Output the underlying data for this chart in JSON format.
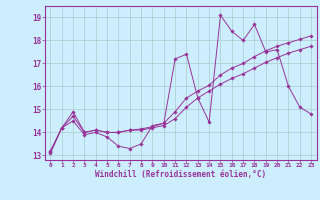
{
  "xlabel": "Windchill (Refroidissement éolien,°C)",
  "bg_color": "#cceeff",
  "line_color": "#993399",
  "grid_color": "#aacccc",
  "xlim": [
    -0.5,
    23.5
  ],
  "ylim": [
    12.8,
    19.5
  ],
  "yticks": [
    13,
    14,
    15,
    16,
    17,
    18,
    19
  ],
  "xticks": [
    0,
    1,
    2,
    3,
    4,
    5,
    6,
    7,
    8,
    9,
    10,
    11,
    12,
    13,
    14,
    15,
    16,
    17,
    18,
    19,
    20,
    21,
    22,
    23
  ],
  "line1_x": [
    0,
    1,
    2,
    3,
    4,
    5,
    6,
    7,
    8,
    9,
    10,
    11,
    12,
    13,
    14,
    15,
    16,
    17,
    18,
    19,
    20,
    21,
    22,
    23
  ],
  "line1_y": [
    13.1,
    14.2,
    14.5,
    13.9,
    14.0,
    13.8,
    13.4,
    13.3,
    13.5,
    14.3,
    14.4,
    17.2,
    17.4,
    15.5,
    14.45,
    19.1,
    18.4,
    18.0,
    18.7,
    17.5,
    17.6,
    16.0,
    15.1,
    14.8
  ],
  "line2_x": [
    0,
    1,
    2,
    3,
    4,
    5,
    6,
    7,
    8,
    9,
    10,
    11,
    12,
    13,
    14,
    15,
    16,
    17,
    18,
    19,
    20,
    21,
    22,
    23
  ],
  "line2_y": [
    13.2,
    14.2,
    14.9,
    14.0,
    14.1,
    14.0,
    14.0,
    14.1,
    14.15,
    14.25,
    14.4,
    14.9,
    15.5,
    15.8,
    16.05,
    16.5,
    16.8,
    17.0,
    17.3,
    17.55,
    17.75,
    17.9,
    18.05,
    18.2
  ],
  "line3_x": [
    0,
    1,
    2,
    3,
    4,
    5,
    6,
    7,
    8,
    9,
    10,
    11,
    12,
    13,
    14,
    15,
    16,
    17,
    18,
    19,
    20,
    21,
    22,
    23
  ],
  "line3_y": [
    13.15,
    14.2,
    14.7,
    14.0,
    14.1,
    14.0,
    14.0,
    14.1,
    14.1,
    14.2,
    14.3,
    14.6,
    15.1,
    15.5,
    15.8,
    16.1,
    16.35,
    16.55,
    16.8,
    17.05,
    17.25,
    17.45,
    17.6,
    17.75
  ]
}
